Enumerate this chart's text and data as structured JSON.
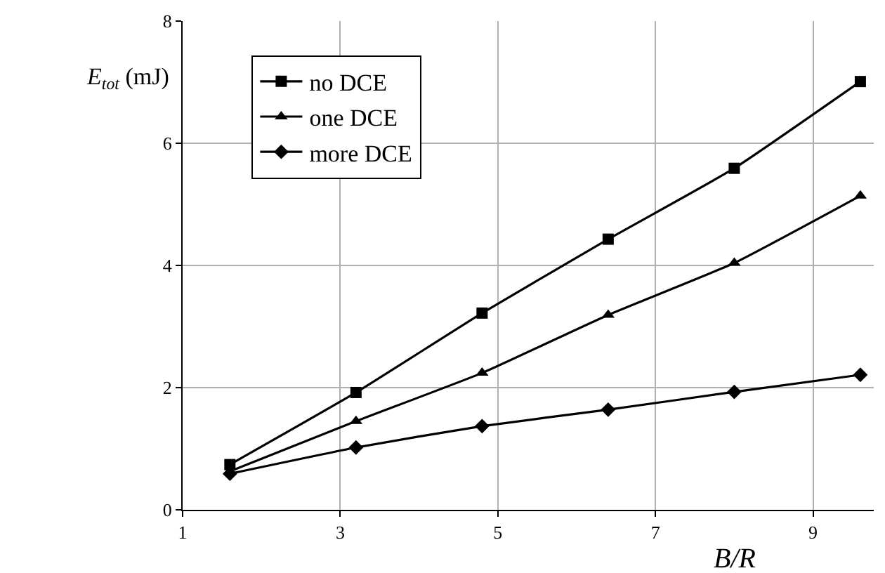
{
  "chart_data": {
    "type": "line",
    "xlabel": "B/R",
    "ylabel": "E$_{tot}$ (mJ)",
    "x": [
      1.6,
      3.2,
      4.8,
      6.4,
      8.0,
      9.6
    ],
    "series": [
      {
        "name": "no DCE",
        "color": "#000000",
        "marker": "square",
        "values": [
          0.74,
          1.92,
          3.22,
          4.43,
          5.59,
          7.01
        ]
      },
      {
        "name": "one DCE",
        "color": "#000000",
        "marker": "triangle",
        "values": [
          0.63,
          1.45,
          2.24,
          3.19,
          4.04,
          5.14
        ]
      },
      {
        "name": "more DCE",
        "color": "#000000",
        "marker": "diamond",
        "values": [
          0.59,
          1.02,
          1.37,
          1.64,
          1.93,
          2.21
        ]
      }
    ],
    "xlim": [
      1,
      9.77
    ],
    "xticks": [
      1,
      3,
      5,
      7,
      9
    ],
    "ylim": [
      0,
      8
    ],
    "yticks": [
      0,
      2,
      4,
      6,
      8
    ],
    "grid": true,
    "legend": "top left",
    "line_style": "solid"
  }
}
